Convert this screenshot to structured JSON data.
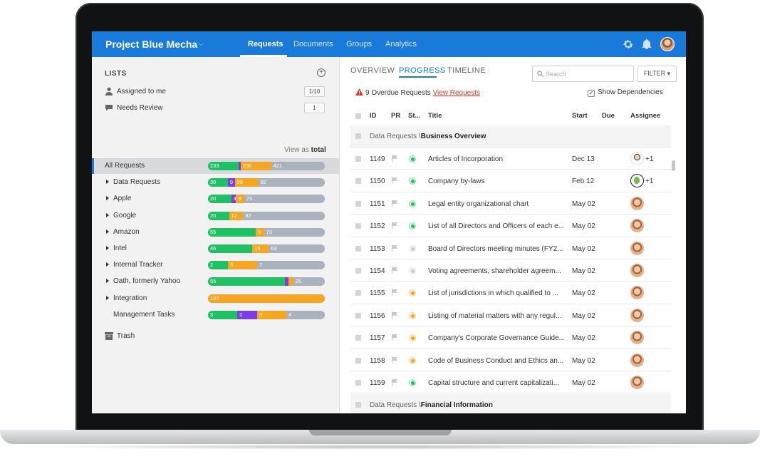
{
  "app": {
    "project_title": "Project Blue Mecha",
    "nav_tabs": [
      "Requests",
      "Documents",
      "Groups",
      "Analytics"
    ],
    "active_nav": "Requests"
  },
  "sidebar": {
    "lists_heading": "LISTS",
    "assigned_label": "Assigned to me",
    "assigned_count": "1/10",
    "review_label": "Needs Review",
    "review_count": "1",
    "view_as_prefix": "View as",
    "view_as_value": "total",
    "trash_label": "Trash",
    "rows": [
      {
        "name": "All Requests",
        "selected": true,
        "arrow": false,
        "segments": [
          {
            "c": "green",
            "v": "233",
            "w": 26
          },
          {
            "c": "purple",
            "v": "",
            "w": 2
          },
          {
            "c": "orange",
            "v": "230",
            "w": 26
          },
          {
            "c": "gray",
            "v": "421",
            "w": 46
          }
        ]
      },
      {
        "name": "Data Requests",
        "arrow": true,
        "segments": [
          {
            "c": "green",
            "v": "30",
            "w": 17
          },
          {
            "c": "purple",
            "v": "9",
            "w": 6
          },
          {
            "c": "orange",
            "v": "38",
            "w": 20
          },
          {
            "c": "gray",
            "v": "92",
            "w": 57
          }
        ]
      },
      {
        "name": "Apple",
        "arrow": true,
        "segments": [
          {
            "c": "green",
            "v": "20",
            "w": 20
          },
          {
            "c": "purple",
            "v": "4",
            "w": 4
          },
          {
            "c": "orange",
            "v": "9",
            "w": 7
          },
          {
            "c": "gray",
            "v": "73",
            "w": 69
          }
        ]
      },
      {
        "name": "Google",
        "arrow": true,
        "segments": [
          {
            "c": "green",
            "v": "20",
            "w": 18
          },
          {
            "c": "orange",
            "v": "12",
            "w": 12
          },
          {
            "c": "gray",
            "v": "82",
            "w": 70
          }
        ]
      },
      {
        "name": "Amazon",
        "arrow": true,
        "segments": [
          {
            "c": "green",
            "v": "55",
            "w": 41
          },
          {
            "c": "orange",
            "v": "9",
            "w": 7
          },
          {
            "c": "gray",
            "v": "73",
            "w": 52
          }
        ]
      },
      {
        "name": "Intel",
        "arrow": true,
        "segments": [
          {
            "c": "green",
            "v": "46",
            "w": 38
          },
          {
            "c": "orange",
            "v": "16",
            "w": 14
          },
          {
            "c": "gray",
            "v": "63",
            "w": 48
          }
        ]
      },
      {
        "name": "Internal Tracker",
        "arrow": true,
        "segments": [
          {
            "c": "green",
            "v": "2",
            "w": 17
          },
          {
            "c": "orange",
            "v": "3",
            "w": 25
          },
          {
            "c": "gray",
            "v": "7",
            "w": 58
          }
        ]
      },
      {
        "name": "Oath, formerly Yahoo",
        "arrow": true,
        "segments": [
          {
            "c": "green",
            "v": "55",
            "w": 66
          },
          {
            "c": "purple",
            "v": "",
            "w": 3
          },
          {
            "c": "orange",
            "v": "",
            "w": 4
          },
          {
            "c": "gray",
            "v": "25",
            "w": 27
          }
        ]
      },
      {
        "name": "Integration",
        "arrow": true,
        "segments": [
          {
            "c": "orange",
            "v": "137",
            "w": 100
          }
        ]
      },
      {
        "name": "Management Tasks",
        "arrow": false,
        "segments": [
          {
            "c": "green",
            "v": "3",
            "w": 25
          },
          {
            "c": "purple",
            "v": "2",
            "w": 17
          },
          {
            "c": "orange",
            "v": "3",
            "w": 25
          },
          {
            "c": "gray",
            "v": "4",
            "w": 33
          }
        ]
      }
    ]
  },
  "main": {
    "sub_tabs": [
      "OVERVIEW",
      "PROGRESS",
      "TIMELINE"
    ],
    "active_sub_tab": "PROGRESS",
    "search_placeholder": "Search",
    "filter_label": "FILTER",
    "overdue_text": "9 Overdue Requests",
    "overdue_link": "View Requests",
    "show_dependencies": "Show Dependencies",
    "columns": [
      "ID",
      "PR",
      "St...",
      "Title",
      "Start",
      "Due",
      "Assignee"
    ],
    "groups": [
      {
        "prefix": "Data Requests \\",
        "name": "Business Overview"
      },
      {
        "prefix": "Data Requests \\",
        "name": "Financial Information"
      }
    ],
    "rows": [
      {
        "id": "1149",
        "status": "green",
        "title": "Articles of Incorporation",
        "start": "Dec 13",
        "assignee": "man",
        "extra": "+1"
      },
      {
        "id": "1150",
        "status": "green",
        "title": "Company by-laws",
        "start": "Feb 12",
        "assignee": "green",
        "extra": "+1"
      },
      {
        "id": "1151",
        "status": "green",
        "title": "Legal entity organizational chart",
        "start": "May 02",
        "assignee": "face",
        "extra": ""
      },
      {
        "id": "1152",
        "status": "green",
        "title": "List of all Directors and Officers of each e...",
        "start": "May 02",
        "assignee": "face",
        "extra": ""
      },
      {
        "id": "1153",
        "status": "gray",
        "title": "Board of Directors meeting minutes (FY2...",
        "start": "May 02",
        "assignee": "face",
        "extra": ""
      },
      {
        "id": "1154",
        "status": "gray",
        "title": "Voting agreements, shareholder agreem...",
        "start": "May 02",
        "assignee": "face",
        "extra": ""
      },
      {
        "id": "1155",
        "status": "orange",
        "title": "List of jurisdictions in which qualified to ...",
        "start": "May 02",
        "assignee": "face",
        "extra": ""
      },
      {
        "id": "1156",
        "status": "orange",
        "title": "Listing of material matters with any regul...",
        "start": "May 02",
        "assignee": "face",
        "extra": ""
      },
      {
        "id": "1157",
        "status": "orange",
        "title": "Company's Corporate Governance Guide...",
        "start": "May 02",
        "assignee": "face",
        "extra": ""
      },
      {
        "id": "1158",
        "status": "orange",
        "title": "Code of Business Conduct and Ethics an...",
        "start": "May 02",
        "assignee": "face",
        "extra": ""
      },
      {
        "id": "1159",
        "status": "green",
        "title": "Capital structure and current capitalizati...",
        "start": "May 02",
        "assignee": "face",
        "extra": ""
      }
    ]
  },
  "colors": {
    "brand": "#1a7ad9",
    "green": "#22c065",
    "orange": "#f5a623",
    "purple": "#7b3fe4",
    "gray": "#aab3bd",
    "status_gray": "#c9ccd1",
    "danger": "#d53b2f"
  }
}
